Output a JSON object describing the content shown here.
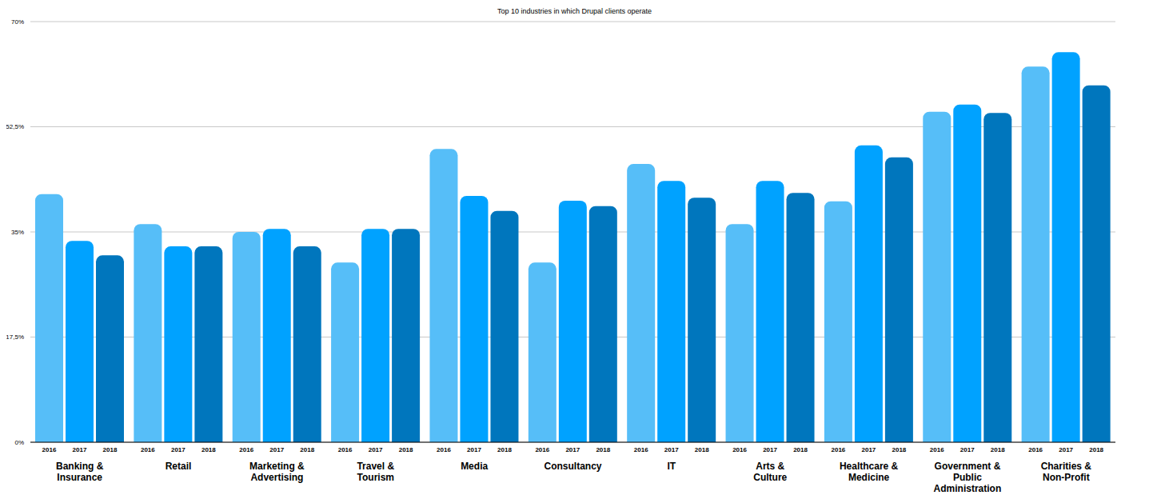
{
  "chart_data": {
    "type": "bar",
    "title": "Top 10 industries in which Drupal clients operate",
    "categories": [
      "Banking & Insurance",
      "Retail",
      "Marketing & Advertising",
      "Travel & Tourism",
      "Media",
      "Consultancy",
      "IT",
      "Arts & Culture",
      "Healthcare & Medicine",
      "Government & Public Administration",
      "Charities & Non-Profit"
    ],
    "series": [
      {
        "name": "2016",
        "color": "#56bef8",
        "values": [
          41.3,
          36.3,
          35.0,
          29.9,
          48.8,
          29.9,
          46.3,
          36.3,
          40.1,
          55.0,
          62.5
        ]
      },
      {
        "name": "2017",
        "color": "#00a2ff",
        "values": [
          33.5,
          32.6,
          35.5,
          35.5,
          41.0,
          40.2,
          43.5,
          43.5,
          49.4,
          56.2,
          64.9
        ]
      },
      {
        "name": "2018",
        "color": "#0076bd",
        "values": [
          31.1,
          32.6,
          32.6,
          35.5,
          38.5,
          39.3,
          40.7,
          41.5,
          47.4,
          54.8,
          59.4
        ]
      }
    ],
    "ylim": [
      0,
      70
    ],
    "yticks": [
      {
        "value": 0,
        "label": "0%"
      },
      {
        "value": 17.5,
        "label": "17,5%"
      },
      {
        "value": 35,
        "label": "35%"
      },
      {
        "value": 52.5,
        "label": "52,5%"
      },
      {
        "value": 70,
        "label": "70%"
      }
    ],
    "grid": true
  }
}
